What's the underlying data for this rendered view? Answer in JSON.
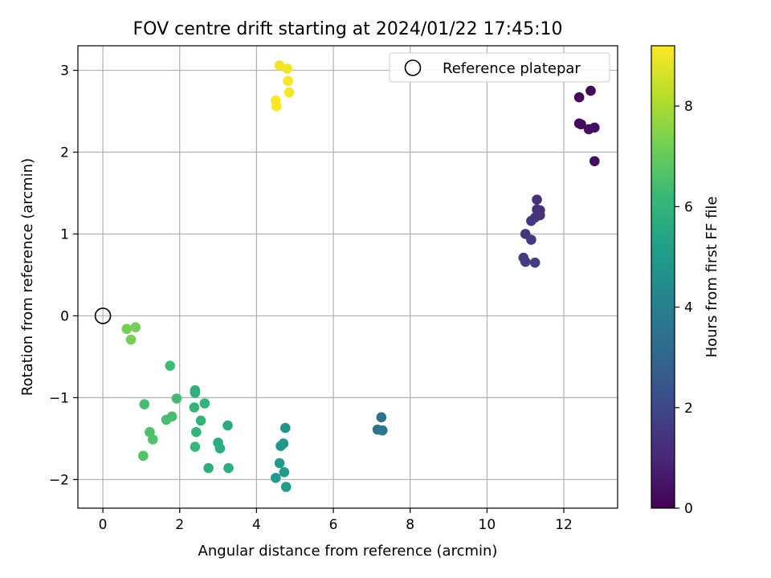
{
  "chart_data": {
    "type": "scatter",
    "title": "FOV centre drift starting at 2024/01/22 17:45:10",
    "xlabel": "Angular distance from reference (arcmin)",
    "ylabel": "Rotation from reference (arcmin)",
    "xlim": [
      -0.65,
      13.4
    ],
    "ylim": [
      -2.35,
      3.3
    ],
    "xticks": [
      0,
      2,
      4,
      6,
      8,
      10,
      12
    ],
    "yticks": [
      -2,
      -1,
      0,
      1,
      2,
      3
    ],
    "xtick_labels": [
      "0",
      "2",
      "4",
      "6",
      "8",
      "10",
      "12"
    ],
    "ytick_labels": [
      "−2",
      "−1",
      "0",
      "1",
      "2",
      "3"
    ],
    "grid": true,
    "legend": {
      "position": "top-right",
      "label": "Reference platepar"
    },
    "reference_point": {
      "x": 0,
      "y": 0
    },
    "colorbar": {
      "label": "Hours from first FF file",
      "range": [
        0,
        9.2
      ],
      "ticks": [
        0,
        2,
        4,
        6,
        8
      ],
      "tick_labels": [
        "0",
        "2",
        "4",
        "6",
        "8"
      ],
      "colormap": [
        "#440154",
        "#482878",
        "#3e4989",
        "#31688e",
        "#26828e",
        "#1f9e89",
        "#35b779",
        "#6ece58",
        "#b5de2b",
        "#fde725"
      ]
    },
    "points": [
      {
        "x": 12.4,
        "y": 2.67,
        "c": 0.1
      },
      {
        "x": 12.7,
        "y": 2.75,
        "c": 0.15
      },
      {
        "x": 12.4,
        "y": 2.35,
        "c": 0.2
      },
      {
        "x": 12.45,
        "y": 2.34,
        "c": 0.25
      },
      {
        "x": 12.65,
        "y": 2.28,
        "c": 0.3
      },
      {
        "x": 12.8,
        "y": 2.3,
        "c": 0.35
      },
      {
        "x": 12.8,
        "y": 1.89,
        "c": 0.4
      },
      {
        "x": 11.3,
        "y": 1.42,
        "c": 1.2
      },
      {
        "x": 11.3,
        "y": 1.3,
        "c": 1.25
      },
      {
        "x": 11.38,
        "y": 1.29,
        "c": 1.3
      },
      {
        "x": 11.38,
        "y": 1.23,
        "c": 1.35
      },
      {
        "x": 11.25,
        "y": 1.2,
        "c": 1.4
      },
      {
        "x": 11.15,
        "y": 1.16,
        "c": 1.45
      },
      {
        "x": 11.0,
        "y": 1.0,
        "c": 1.5
      },
      {
        "x": 11.15,
        "y": 0.93,
        "c": 1.55
      },
      {
        "x": 10.95,
        "y": 0.71,
        "c": 1.6
      },
      {
        "x": 11.0,
        "y": 0.66,
        "c": 1.65
      },
      {
        "x": 11.25,
        "y": 0.65,
        "c": 1.7
      },
      {
        "x": 7.25,
        "y": -1.24,
        "c": 3.5
      },
      {
        "x": 7.15,
        "y": -1.39,
        "c": 3.55
      },
      {
        "x": 7.28,
        "y": -1.4,
        "c": 3.6
      },
      {
        "x": 4.75,
        "y": -1.37,
        "c": 4.8
      },
      {
        "x": 4.7,
        "y": -1.56,
        "c": 4.85
      },
      {
        "x": 4.63,
        "y": -1.59,
        "c": 4.9
      },
      {
        "x": 4.6,
        "y": -1.8,
        "c": 4.95
      },
      {
        "x": 4.72,
        "y": -1.91,
        "c": 5.0
      },
      {
        "x": 4.5,
        "y": -1.98,
        "c": 5.05
      },
      {
        "x": 4.77,
        "y": -2.09,
        "c": 5.1
      },
      {
        "x": 3.25,
        "y": -1.34,
        "c": 5.6
      },
      {
        "x": 3.0,
        "y": -1.55,
        "c": 5.65
      },
      {
        "x": 3.05,
        "y": -1.62,
        "c": 5.7
      },
      {
        "x": 3.27,
        "y": -1.86,
        "c": 5.75
      },
      {
        "x": 2.75,
        "y": -1.86,
        "c": 5.8
      },
      {
        "x": 2.4,
        "y": -0.91,
        "c": 5.85
      },
      {
        "x": 2.4,
        "y": -0.94,
        "c": 5.9
      },
      {
        "x": 2.65,
        "y": -1.07,
        "c": 5.95
      },
      {
        "x": 2.38,
        "y": -1.12,
        "c": 6.0
      },
      {
        "x": 2.55,
        "y": -1.28,
        "c": 6.05
      },
      {
        "x": 2.43,
        "y": -1.42,
        "c": 6.1
      },
      {
        "x": 2.4,
        "y": -1.6,
        "c": 6.15
      },
      {
        "x": 1.75,
        "y": -0.61,
        "c": 6.3
      },
      {
        "x": 1.92,
        "y": -1.01,
        "c": 6.35
      },
      {
        "x": 1.08,
        "y": -1.08,
        "c": 6.4
      },
      {
        "x": 1.8,
        "y": -1.23,
        "c": 6.45
      },
      {
        "x": 1.65,
        "y": -1.27,
        "c": 6.5
      },
      {
        "x": 1.22,
        "y": -1.42,
        "c": 6.55
      },
      {
        "x": 1.3,
        "y": -1.51,
        "c": 6.6
      },
      {
        "x": 1.05,
        "y": -1.71,
        "c": 6.65
      },
      {
        "x": 0.62,
        "y": -0.16,
        "c": 7.2
      },
      {
        "x": 0.85,
        "y": -0.14,
        "c": 7.25
      },
      {
        "x": 0.73,
        "y": -0.29,
        "c": 7.3
      },
      {
        "x": 4.6,
        "y": 3.06,
        "c": 9.0
      },
      {
        "x": 4.8,
        "y": 3.02,
        "c": 9.05
      },
      {
        "x": 4.82,
        "y": 2.87,
        "c": 9.1
      },
      {
        "x": 4.85,
        "y": 2.73,
        "c": 9.12
      },
      {
        "x": 4.5,
        "y": 2.63,
        "c": 9.15
      },
      {
        "x": 4.52,
        "y": 2.56,
        "c": 9.2
      }
    ]
  }
}
